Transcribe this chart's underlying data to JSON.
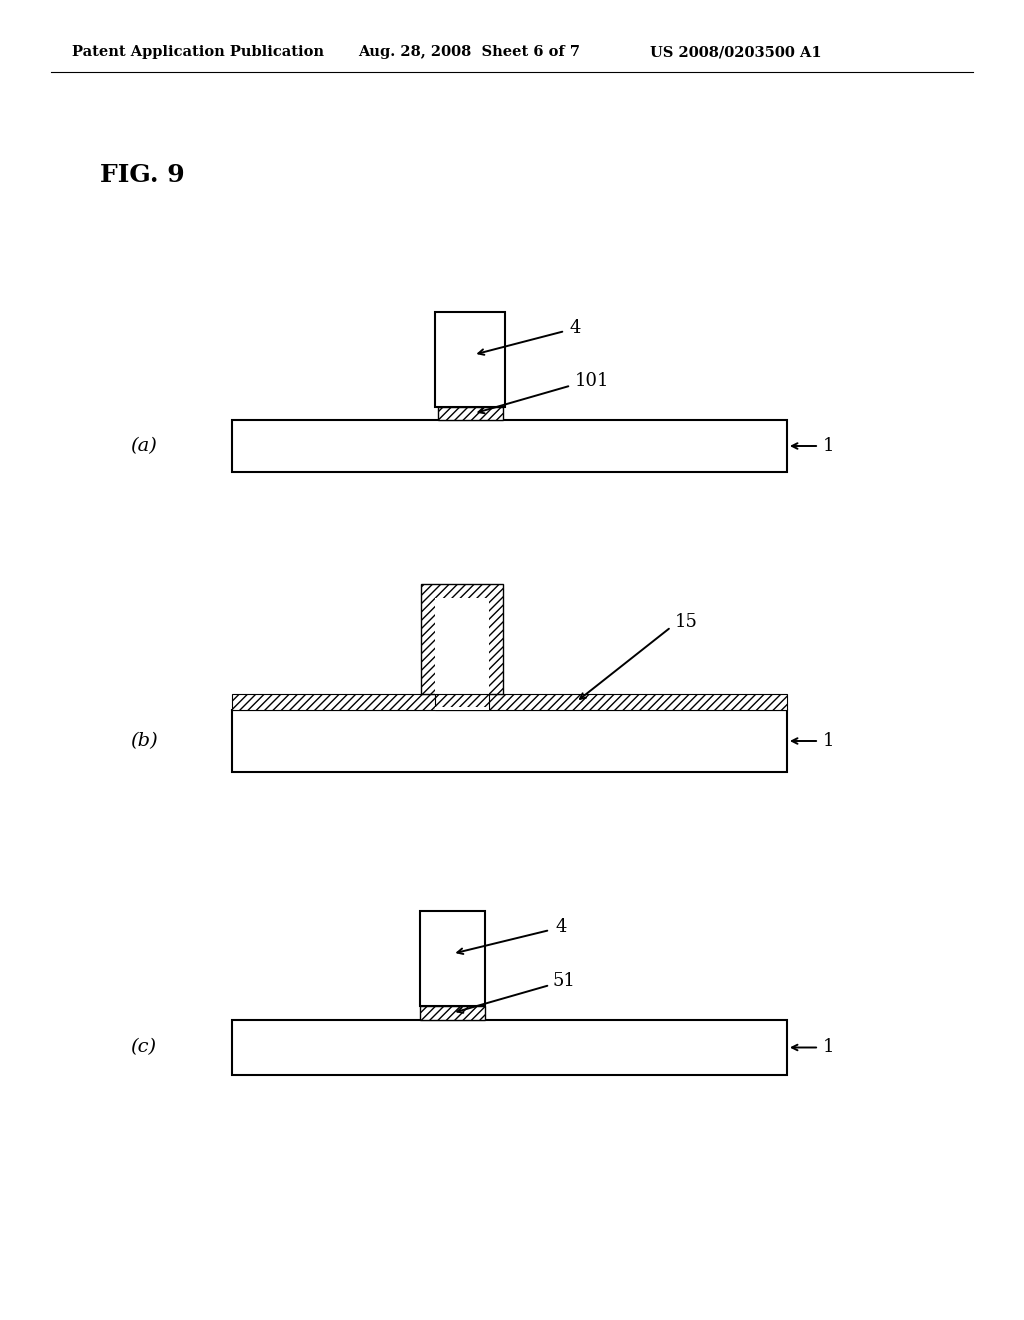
{
  "background_color": "#ffffff",
  "header_left": "Patent Application Publication",
  "header_mid": "Aug. 28, 2008  Sheet 6 of 7",
  "header_right": "US 2008/0203500 A1",
  "fig_label": "FIG. 9"
}
